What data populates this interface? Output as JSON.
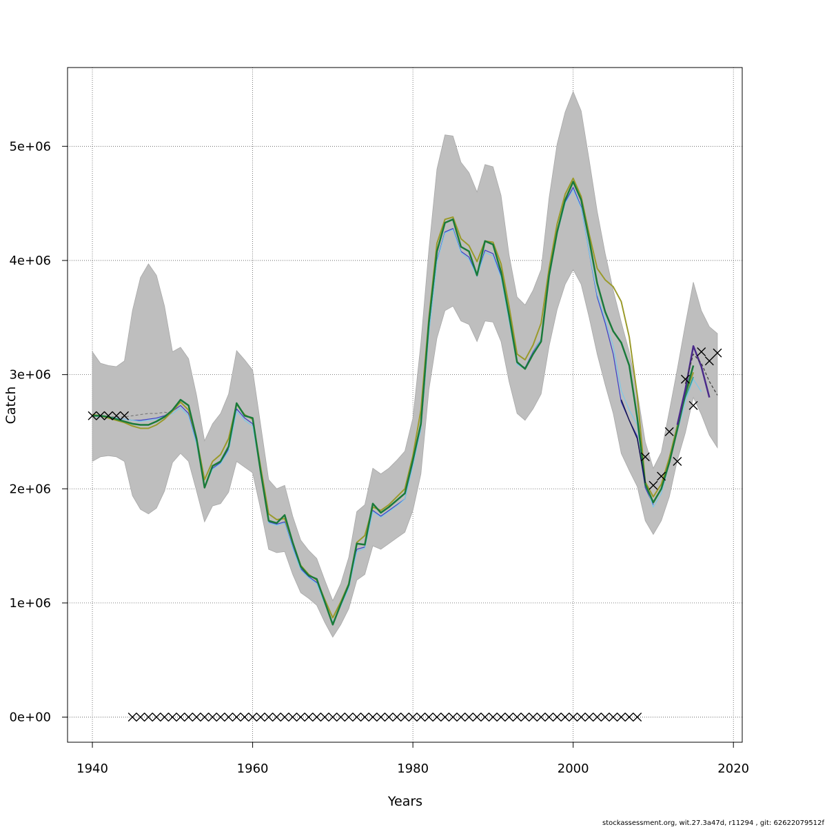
{
  "chart_data": {
    "type": "line",
    "title": "",
    "xlabel": "Years",
    "ylabel": "Catch",
    "xlim": [
      1936.9,
      2021.1
    ],
    "ylim": [
      -220000,
      5690000
    ],
    "grid": true,
    "legend": "none",
    "footer": "stockassessment.org, wit.27.3a47d, r11294 , git: 62622079512f",
    "x_ticks": [
      1940,
      1960,
      1980,
      2000,
      2020
    ],
    "x_tick_labels": [
      "1940",
      "1960",
      "1980",
      "2000",
      "2020"
    ],
    "y_ticks": [
      0,
      1000000,
      2000000,
      3000000,
      4000000,
      5000000
    ],
    "y_tick_labels": [
      "0e+00",
      "1e+06",
      "2e+06",
      "3e+06",
      "4e+06",
      "5e+06"
    ],
    "band": {
      "x": [
        1940,
        1941,
        1942,
        1943,
        1944,
        1945,
        1946,
        1947,
        1948,
        1949,
        1950,
        1951,
        1952,
        1953,
        1954,
        1955,
        1956,
        1957,
        1958,
        1959,
        1960,
        1961,
        1962,
        1963,
        1964,
        1965,
        1966,
        1967,
        1968,
        1969,
        1970,
        1971,
        1972,
        1973,
        1974,
        1975,
        1976,
        1977,
        1978,
        1979,
        1980,
        1981,
        1982,
        1983,
        1984,
        1985,
        1986,
        1987,
        1988,
        1989,
        1990,
        1991,
        1992,
        1993,
        1994,
        1995,
        1996,
        1997,
        1998,
        1999,
        2000,
        2001,
        2002,
        2003,
        2004,
        2005,
        2006,
        2007,
        2008,
        2009,
        2010,
        2011,
        2012,
        2013,
        2014,
        2015,
        2016,
        2017,
        2018
      ],
      "upper": [
        3200000,
        3100000,
        3080000,
        3070000,
        3120000,
        3560000,
        3850000,
        3970000,
        3870000,
        3600000,
        3200000,
        3240000,
        3140000,
        2820000,
        2420000,
        2570000,
        2660000,
        2830000,
        3210000,
        3130000,
        3040000,
        2560000,
        2080000,
        2000000,
        2030000,
        1760000,
        1550000,
        1460000,
        1390000,
        1200000,
        1020000,
        1170000,
        1400000,
        1800000,
        1860000,
        2180000,
        2130000,
        2180000,
        2250000,
        2330000,
        2620000,
        3280000,
        4100000,
        4800000,
        5100000,
        5090000,
        4860000,
        4770000,
        4600000,
        4840000,
        4820000,
        4570000,
        4050000,
        3680000,
        3610000,
        3740000,
        3920000,
        4550000,
        5020000,
        5300000,
        5480000,
        5310000,
        4880000,
        4430000,
        4060000,
        3740000,
        3460000,
        3200000,
        2850000,
        2410000,
        2180000,
        2320000,
        2680000,
        3050000,
        3440000,
        3810000,
        3560000,
        3420000,
        3360000
      ],
      "lower": [
        2240000,
        2280000,
        2290000,
        2280000,
        2240000,
        1940000,
        1820000,
        1780000,
        1830000,
        1980000,
        2230000,
        2310000,
        2240000,
        1980000,
        1710000,
        1850000,
        1870000,
        1970000,
        2240000,
        2190000,
        2140000,
        1820000,
        1470000,
        1440000,
        1450000,
        1250000,
        1090000,
        1040000,
        980000,
        830000,
        700000,
        810000,
        950000,
        1200000,
        1250000,
        1500000,
        1470000,
        1520000,
        1570000,
        1620000,
        1810000,
        2130000,
        2870000,
        3320000,
        3560000,
        3600000,
        3470000,
        3440000,
        3290000,
        3470000,
        3460000,
        3290000,
        2940000,
        2660000,
        2600000,
        2700000,
        2830000,
        3250000,
        3570000,
        3790000,
        3920000,
        3790000,
        3500000,
        3180000,
        2910000,
        2660000,
        2310000,
        2160000,
        2020000,
        1720000,
        1600000,
        1720000,
        1930000,
        2250000,
        2490000,
        2800000,
        2650000,
        2470000,
        2360000
      ]
    },
    "series": [
      {
        "color": "#7a7a7a",
        "width": 1.2,
        "dash": "4,3",
        "x": [
          1940,
          1941,
          1942,
          1943,
          1944,
          1945,
          1946,
          1947,
          1948,
          1949,
          1950
        ],
        "y": [
          2630000,
          2640000,
          2630000,
          2630000,
          2630000,
          2640000,
          2650000,
          2660000,
          2660000,
          2670000,
          2660000
        ]
      },
      {
        "color": "#3c3cc8",
        "width": 1.2,
        "x": [
          1940,
          1941,
          1942,
          1943,
          1944,
          1945,
          1946,
          1947,
          1948,
          1949,
          1950,
          1951,
          1952,
          1953,
          1954,
          1955,
          1956,
          1957,
          1958,
          1959,
          1960,
          1961,
          1962,
          1963,
          1964,
          1965,
          1966,
          1967,
          1968,
          1969,
          1970,
          1971,
          1972,
          1973,
          1974,
          1975,
          1976,
          1977,
          1978,
          1979,
          1980,
          1981,
          1982,
          1983,
          1984,
          1985,
          1986,
          1987,
          1988,
          1989,
          1990,
          1991,
          1992,
          1993,
          1994,
          1995,
          1996,
          1997,
          1998,
          1999,
          2000,
          2001,
          2002,
          2003,
          2004,
          2005,
          2006,
          2007,
          2008,
          2009,
          2010
        ],
        "y": [
          2640000,
          2630000,
          2630000,
          2620000,
          2610000,
          2600000,
          2600000,
          2610000,
          2620000,
          2640000,
          2680000,
          2730000,
          2660000,
          2400000,
          2020000,
          2180000,
          2230000,
          2350000,
          2700000,
          2620000,
          2570000,
          2150000,
          1710000,
          1690000,
          1710000,
          1490000,
          1300000,
          1230000,
          1180000,
          1000000,
          820000,
          980000,
          1140000,
          1470000,
          1490000,
          1810000,
          1760000,
          1810000,
          1860000,
          1910000,
          2210000,
          2530000,
          3380000,
          4000000,
          4250000,
          4280000,
          4080000,
          4030000,
          3860000,
          4090000,
          4060000,
          3870000,
          3480000,
          3100000,
          3060000,
          3200000,
          3310000,
          3850000,
          4240000,
          4510000,
          4640000,
          4470000,
          4070000,
          3680000,
          3450000,
          3180000,
          2760000,
          2600000,
          2460000,
          2010000,
          1860000
        ]
      },
      {
        "color": "#7cc8e8",
        "width": 1.2,
        "x": [
          1940,
          1941,
          1942,
          1943,
          1944,
          1945,
          1946,
          1947,
          1948,
          1949,
          1950,
          1951,
          1952,
          1953,
          1954,
          1955,
          1956,
          1957,
          1958,
          1959,
          1960,
          1961,
          1962,
          1963,
          1964,
          1965,
          1966,
          1967,
          1968,
          1969,
          1970,
          1971,
          1972,
          1973,
          1974,
          1975,
          1976,
          1977,
          1978,
          1979,
          1980,
          1981,
          1982,
          1983,
          1984,
          1985,
          1986,
          1987,
          1988,
          1989,
          1990,
          1991,
          1992,
          1993,
          1994,
          1995,
          1996,
          1997,
          1998,
          1999,
          2000,
          2001,
          2002,
          2003,
          2004,
          2005,
          2006,
          2007,
          2008,
          2009,
          2010,
          2011,
          2012,
          2013,
          2014,
          2015,
          2016
        ],
        "y": [
          2640000,
          2630000,
          2630000,
          2620000,
          2610000,
          2600000,
          2590000,
          2600000,
          2610000,
          2630000,
          2660000,
          2710000,
          2640000,
          2390000,
          2020000,
          2170000,
          2220000,
          2330000,
          2680000,
          2600000,
          2550000,
          2140000,
          1700000,
          1680000,
          1700000,
          1480000,
          1290000,
          1220000,
          1170000,
          990000,
          830000,
          970000,
          1130000,
          1450000,
          1480000,
          1800000,
          1750000,
          1800000,
          1850000,
          1910000,
          2200000,
          2520000,
          3360000,
          3990000,
          4240000,
          4270000,
          4070000,
          4010000,
          3860000,
          4070000,
          4040000,
          3850000,
          3470000,
          3090000,
          3050000,
          3190000,
          3310000,
          3840000,
          4230000,
          4500000,
          4620000,
          4460000,
          4070000,
          3700000,
          3480000,
          3250000,
          2860000,
          2690000,
          2560000,
          2050000,
          1840000,
          1960000,
          2220000,
          2500000,
          2760000,
          2960000,
          2850000
        ]
      },
      {
        "color": "#2a9a8a",
        "width": 1.5,
        "x": [
          2011,
          2012,
          2013,
          2014,
          2015
        ],
        "y": [
          2030000,
          2270000,
          2560000,
          2800000,
          2980000
        ]
      },
      {
        "color": "#9a9a2a",
        "width": 2,
        "x": [
          1940,
          1941,
          1942,
          1943,
          1944,
          1945,
          1946,
          1947,
          1948,
          1949,
          1950,
          1951,
          1952,
          1953,
          1954,
          1955,
          1956,
          1957,
          1958,
          1959,
          1960,
          1961,
          1962,
          1963,
          1964,
          1965,
          1966,
          1967,
          1968,
          1969,
          1970,
          1971,
          1972,
          1973,
          1974,
          1975,
          1976,
          1977,
          1978,
          1979,
          1980,
          1981,
          1982,
          1983,
          1984,
          1985,
          1986,
          1987,
          1988,
          1989,
          1990,
          1991,
          1992,
          1993,
          1994,
          1995,
          1996,
          1997,
          1998,
          1999,
          2000,
          2001,
          2002,
          2003,
          2004,
          2005,
          2006,
          2007,
          2008,
          2009,
          2010,
          2011,
          2012,
          2013,
          2014,
          2015
        ],
        "y": [
          2650000,
          2640000,
          2620000,
          2600000,
          2580000,
          2550000,
          2530000,
          2530000,
          2560000,
          2610000,
          2680000,
          2760000,
          2690000,
          2440000,
          2080000,
          2240000,
          2300000,
          2440000,
          2740000,
          2650000,
          2610000,
          2190000,
          1780000,
          1730000,
          1740000,
          1530000,
          1330000,
          1250000,
          1200000,
          1030000,
          870000,
          1010000,
          1170000,
          1530000,
          1590000,
          1840000,
          1810000,
          1860000,
          1930000,
          2000000,
          2290000,
          2690000,
          3500000,
          4150000,
          4360000,
          4380000,
          4190000,
          4130000,
          3990000,
          4170000,
          4160000,
          3970000,
          3600000,
          3180000,
          3130000,
          3260000,
          3450000,
          3930000,
          4320000,
          4580000,
          4720000,
          4560000,
          4230000,
          3930000,
          3830000,
          3770000,
          3640000,
          3330000,
          2820000,
          2060000,
          1930000,
          2040000,
          2270000,
          2550000,
          2830000,
          3020000
        ]
      },
      {
        "color": "#1a7a3a",
        "width": 2.5,
        "x": [
          1940,
          1941,
          1942,
          1943,
          1944,
          1945,
          1946,
          1947,
          1948,
          1949,
          1950,
          1951,
          1952,
          1953,
          1954,
          1955,
          1956,
          1957,
          1958,
          1959,
          1960,
          1961,
          1962,
          1963,
          1964,
          1965,
          1966,
          1967,
          1968,
          1969,
          1970,
          1971,
          1972,
          1973,
          1974,
          1975,
          1976,
          1977,
          1978,
          1979,
          1980,
          1981,
          1982,
          1983,
          1984,
          1985,
          1986,
          1987,
          1988,
          1989,
          1990,
          1991,
          1992,
          1993,
          1994,
          1995,
          1996,
          1997,
          1998,
          1999,
          2000,
          2001,
          2002,
          2003,
          2004,
          2005,
          2006,
          2007,
          2008,
          2009,
          2010,
          2011,
          2012,
          2013,
          2014,
          2015
        ],
        "y": [
          2640000,
          2640000,
          2630000,
          2610000,
          2590000,
          2570000,
          2560000,
          2560000,
          2590000,
          2630000,
          2690000,
          2780000,
          2730000,
          2440000,
          2010000,
          2200000,
          2240000,
          2370000,
          2750000,
          2640000,
          2620000,
          2150000,
          1720000,
          1700000,
          1770000,
          1530000,
          1320000,
          1240000,
          1210000,
          1010000,
          810000,
          990000,
          1160000,
          1520000,
          1510000,
          1870000,
          1790000,
          1840000,
          1900000,
          1960000,
          2250000,
          2570000,
          3460000,
          4080000,
          4330000,
          4360000,
          4120000,
          4080000,
          3870000,
          4170000,
          4140000,
          3900000,
          3520000,
          3110000,
          3050000,
          3180000,
          3290000,
          3870000,
          4250000,
          4530000,
          4690000,
          4530000,
          4180000,
          3800000,
          3550000,
          3380000,
          3280000,
          3080000,
          2620000,
          2040000,
          1880000,
          2000000,
          2230000,
          2520000,
          2830000,
          3080000
        ]
      },
      {
        "color": "#151550",
        "width": 1.5,
        "x": [
          2006,
          2007,
          2008,
          2009
        ],
        "y": [
          2780000,
          2600000,
          2440000,
          2050000
        ]
      },
      {
        "color": "#4a2a8a",
        "width": 2.5,
        "x": [
          2013,
          2014,
          2015,
          2016,
          2017
        ],
        "y": [
          2560000,
          2870000,
          3250000,
          3070000,
          2800000
        ]
      },
      {
        "color": "#3a3a3a",
        "width": 1.2,
        "dash": "4,3",
        "x": [
          2014,
          2015,
          2016,
          2017,
          2018
        ],
        "y": [
          2920000,
          3180000,
          3100000,
          2940000,
          2820000
        ]
      }
    ],
    "observations": {
      "x": [
        1940,
        1941,
        1942,
        1943,
        1944,
        1945,
        1946,
        1947,
        1948,
        1949,
        1950,
        1951,
        1952,
        1953,
        1954,
        1955,
        1956,
        1957,
        1958,
        1959,
        1960,
        1961,
        1962,
        1963,
        1964,
        1965,
        1966,
        1967,
        1968,
        1969,
        1970,
        1971,
        1972,
        1973,
        1974,
        1975,
        1976,
        1977,
        1978,
        1979,
        1980,
        1981,
        1982,
        1983,
        1984,
        1985,
        1986,
        1987,
        1988,
        1989,
        1990,
        1991,
        1992,
        1993,
        1994,
        1995,
        1996,
        1997,
        1998,
        1999,
        2000,
        2001,
        2002,
        2003,
        2004,
        2005,
        2006,
        2007,
        2008,
        2009,
        2010,
        2011,
        2012,
        2013,
        2014,
        2015,
        2016,
        2017,
        2018
      ],
      "y": [
        2640000,
        2640000,
        2640000,
        2640000,
        2640000,
        0,
        0,
        0,
        0,
        0,
        0,
        0,
        0,
        0,
        0,
        0,
        0,
        0,
        0,
        0,
        0,
        0,
        0,
        0,
        0,
        0,
        0,
        0,
        0,
        0,
        0,
        0,
        0,
        0,
        0,
        0,
        0,
        0,
        0,
        0,
        0,
        0,
        0,
        0,
        0,
        0,
        0,
        0,
        0,
        0,
        0,
        0,
        0,
        0,
        0,
        0,
        0,
        0,
        0,
        0,
        0,
        0,
        0,
        0,
        0,
        0,
        0,
        0,
        0,
        2280000,
        2030000,
        2110000,
        2500000,
        2240000,
        2960000,
        2730000,
        3200000,
        3120000,
        3190000
      ],
      "marker": "x"
    }
  }
}
